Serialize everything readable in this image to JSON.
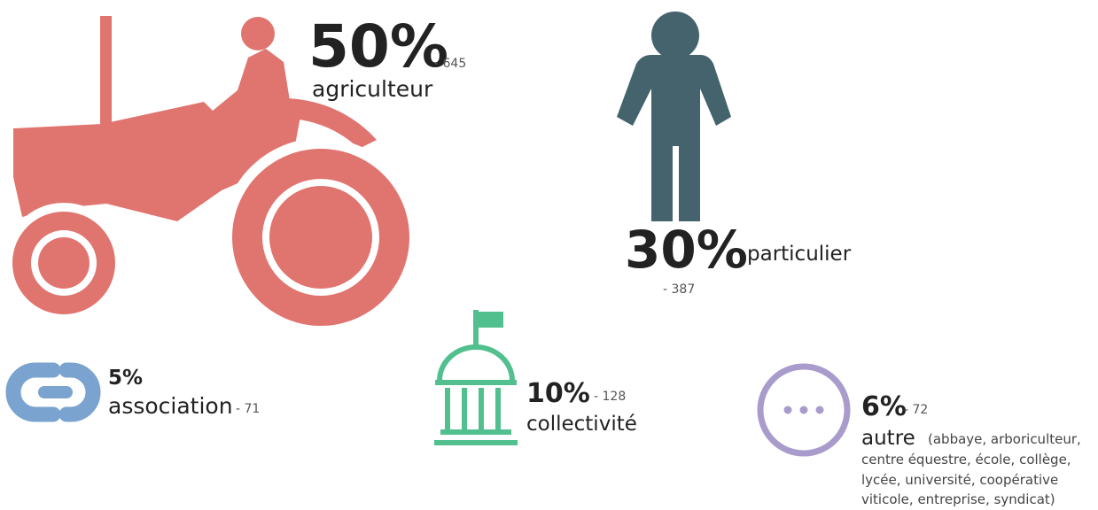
{
  "items": [
    {
      "percent": "50%",
      "count": "- 645",
      "label": "agriculteur"
    },
    {
      "percent": "30%",
      "count": "- 387",
      "label": "particulier"
    },
    {
      "percent": "5%",
      "count": "- 71",
      "label": "association"
    },
    {
      "percent": "10%",
      "count": "- 128",
      "label": "collectivité"
    },
    {
      "percent": "6%",
      "count": "- 72",
      "label": "autre",
      "detail_lines": [
        "(abbaye, arboriculteur,",
        "centre équestre, école, collège,",
        "lycée, université, coopérative",
        "viticole, entreprise, syndicat)"
      ]
    }
  ]
}
